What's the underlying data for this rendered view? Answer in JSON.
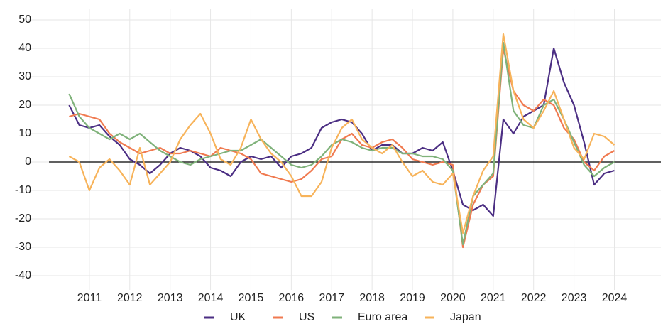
{
  "chart_data": {
    "type": "line",
    "x": [
      2010.5,
      2010.75,
      2011,
      2011.25,
      2011.5,
      2011.75,
      2012,
      2012.25,
      2012.5,
      2012.75,
      2013,
      2013.25,
      2013.5,
      2013.75,
      2014,
      2014.25,
      2014.5,
      2014.75,
      2015,
      2015.25,
      2015.5,
      2015.75,
      2016,
      2016.25,
      2016.5,
      2016.75,
      2017,
      2017.25,
      2017.5,
      2017.75,
      2018,
      2018.25,
      2018.5,
      2018.75,
      2019,
      2019.25,
      2019.5,
      2019.75,
      2020,
      2020.25,
      2020.5,
      2020.75,
      2021,
      2021.25,
      2021.5,
      2021.75,
      2022,
      2022.25,
      2022.5,
      2022.75,
      2023,
      2023.25,
      2023.5,
      2023.75,
      2024
    ],
    "series": [
      {
        "name": "UK",
        "color": "#4b2e83",
        "values": [
          20,
          13,
          12,
          13,
          9,
          6,
          1,
          -1,
          -4,
          -1,
          3,
          5,
          4,
          2,
          -2,
          -3,
          -5,
          0,
          2,
          1,
          2,
          -2,
          2,
          3,
          5,
          12,
          14,
          15,
          14,
          10,
          4,
          6,
          6,
          3,
          3,
          5,
          4,
          7,
          -3,
          -15,
          -17,
          -15,
          -19,
          15,
          10,
          16,
          18,
          20,
          40,
          28,
          20,
          7,
          -8,
          -4,
          -3
        ]
      },
      {
        "name": "US",
        "color": "#f07a50",
        "values": [
          16,
          17,
          16,
          15,
          10,
          7,
          5,
          3,
          4,
          5,
          3,
          3,
          4,
          3,
          2,
          5,
          4,
          3,
          1,
          -4,
          -5,
          -6,
          -7,
          -6,
          -3,
          1,
          2,
          8,
          10,
          6,
          5,
          7,
          8,
          5,
          1,
          0,
          -1,
          0,
          -1,
          -30,
          -15,
          -8,
          -5,
          40,
          25,
          20,
          18,
          22,
          20,
          12,
          8,
          0,
          -3,
          2,
          4
        ]
      },
      {
        "name": "Euro area",
        "color": "#7fb27a",
        "values": [
          24,
          16,
          12,
          10,
          8,
          10,
          8,
          10,
          7,
          4,
          2,
          0,
          -1,
          1,
          2,
          3,
          4,
          4,
          6,
          8,
          5,
          2,
          -1,
          -2,
          -1,
          2,
          6,
          8,
          7,
          5,
          4,
          5,
          5,
          3,
          3,
          2,
          2,
          1,
          -3,
          -29,
          -12,
          -8,
          -4,
          42,
          18,
          13,
          12,
          20,
          22,
          15,
          7,
          -1,
          -5,
          -2,
          0
        ]
      },
      {
        "name": "Japan",
        "color": "#f7b35a",
        "values": [
          2,
          0,
          -10,
          -2,
          1,
          -3,
          -8,
          5,
          -8,
          -4,
          0,
          8,
          13,
          17,
          10,
          1,
          -1,
          5,
          15,
          8,
          3,
          0,
          -5,
          -12,
          -12,
          -7,
          5,
          12,
          15,
          8,
          5,
          3,
          6,
          0,
          -5,
          -3,
          -7,
          -8,
          -4,
          -25,
          -12,
          -3,
          2,
          45,
          25,
          15,
          12,
          18,
          25,
          15,
          5,
          1,
          10,
          9,
          6
        ]
      }
    ],
    "xlim": [
      2010,
      2024.8
    ],
    "xticks": [
      2011,
      2012,
      2013,
      2014,
      2015,
      2016,
      2017,
      2018,
      2019,
      2020,
      2021,
      2022,
      2023,
      2024
    ],
    "ylim": [
      -45,
      54
    ],
    "yticks": [
      -40,
      -30,
      -20,
      -10,
      0,
      10,
      20,
      30,
      40,
      50
    ],
    "grid": true,
    "legend": "bottom"
  }
}
